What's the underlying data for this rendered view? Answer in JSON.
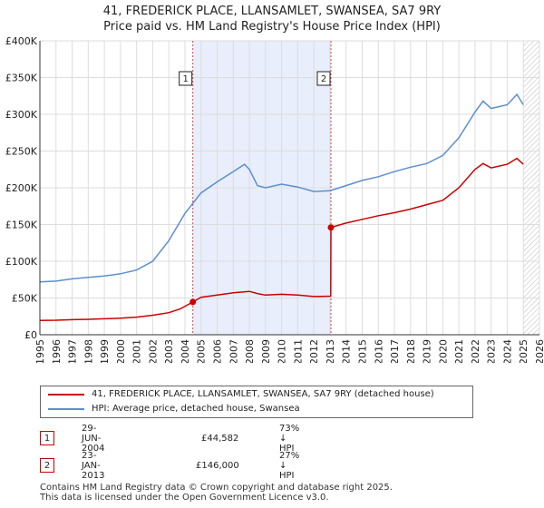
{
  "title_line1": "41, FREDERICK PLACE, LLANSAMLET, SWANSEA, SA7 9RY",
  "title_line2": "Price paid vs. HM Land Registry's House Price Index (HPI)",
  "colors": {
    "property": "#cc0000",
    "hpi": "#5b8fd0",
    "shade": "#e8eefb",
    "grid": "#dddddd"
  },
  "chart_data": {
    "type": "line",
    "xlim": [
      1995,
      2026
    ],
    "ylim": [
      0,
      400000
    ],
    "y_ticks": [
      0,
      50000,
      100000,
      150000,
      200000,
      250000,
      300000,
      350000,
      400000
    ],
    "y_tick_labels": [
      "£0",
      "£50K",
      "£100K",
      "£150K",
      "£200K",
      "£250K",
      "£300K",
      "£350K",
      "£400K"
    ],
    "x_ticks": [
      1995,
      1996,
      1997,
      1998,
      1999,
      2000,
      2001,
      2002,
      2003,
      2004,
      2005,
      2006,
      2007,
      2008,
      2009,
      2010,
      2011,
      2012,
      2013,
      2014,
      2015,
      2016,
      2017,
      2018,
      2019,
      2020,
      2021,
      2022,
      2023,
      2024,
      2025,
      2026
    ],
    "x_tick_labels": [
      "1995",
      "1996",
      "1997",
      "1998",
      "1999",
      "2000",
      "2001",
      "2002",
      "2003",
      "2004",
      "2005",
      "2006",
      "2007",
      "2008",
      "2009",
      "2010",
      "2011",
      "2012",
      "2013",
      "2014",
      "2015",
      "2016",
      "2017",
      "2018",
      "2019",
      "2020",
      "2021",
      "2022",
      "2023",
      "2024",
      "2025",
      "2026"
    ],
    "shaded_span": [
      2004.49,
      2013.06
    ],
    "hatched_from": 2025.0,
    "series": [
      {
        "name": "41, FREDERICK PLACE, LLANSAMLET, SWANSEA, SA7 9RY (detached house)",
        "x": [
          1995,
          1996,
          1997,
          1998,
          1999,
          2000,
          2001,
          2002,
          2003,
          2003.7,
          2004.49,
          2005,
          2006,
          2007,
          2008,
          2008.5,
          2009,
          2010,
          2011,
          2012,
          2013.05,
          2013.06,
          2014,
          2015,
          2016,
          2017,
          2018,
          2019,
          2020,
          2021,
          2022,
          2022.5,
          2023,
          2024,
          2024.6,
          2025
        ],
        "values": [
          19500,
          19800,
          20500,
          21000,
          21700,
          22500,
          24000,
          26500,
          30000,
          35000,
          44582,
          51000,
          54000,
          57000,
          59000,
          56000,
          54000,
          55000,
          54000,
          52000,
          52500,
          146000,
          152000,
          157000,
          162000,
          166000,
          171000,
          177000,
          183000,
          200000,
          225000,
          233000,
          227000,
          232000,
          240000,
          232000
        ]
      },
      {
        "name": "HPI: Average price, detached house, Swansea",
        "x": [
          1995,
          1996,
          1997,
          1998,
          1999,
          2000,
          2001,
          2002,
          2003,
          2004,
          2005,
          2006,
          2007,
          2007.7,
          2008,
          2008.5,
          2009,
          2010,
          2011,
          2012,
          2013,
          2014,
          2015,
          2016,
          2017,
          2018,
          2019,
          2020,
          2021,
          2022,
          2022.5,
          2023,
          2024,
          2024.6,
          2025
        ],
        "values": [
          72000,
          73000,
          76000,
          78000,
          80000,
          83000,
          88000,
          100000,
          128000,
          165000,
          193000,
          208000,
          222000,
          232000,
          225000,
          203000,
          200000,
          205000,
          201000,
          195000,
          196000,
          203000,
          210000,
          215000,
          222000,
          228000,
          233000,
          244000,
          268000,
          303000,
          318000,
          308000,
          313000,
          327000,
          313000
        ]
      }
    ],
    "sales": [
      {
        "label": "1",
        "x": 2004.49,
        "value": 44582
      },
      {
        "label": "2",
        "x": 2013.06,
        "value": 146000
      }
    ]
  },
  "legend": {
    "property": "41, FREDERICK PLACE, LLANSAMLET, SWANSEA, SA7 9RY (detached house)",
    "hpi": "HPI: Average price, detached house, Swansea"
  },
  "transactions": [
    {
      "num": "1",
      "date": "29-JUN-2004",
      "price": "£44,582",
      "hpi": "73% ↓ HPI"
    },
    {
      "num": "2",
      "date": "23-JAN-2013",
      "price": "£146,000",
      "hpi": "27% ↓ HPI"
    }
  ],
  "footer": {
    "line1": "Contains HM Land Registry data © Crown copyright and database right 2025.",
    "line2": "This data is licensed under the Open Government Licence v3.0."
  }
}
